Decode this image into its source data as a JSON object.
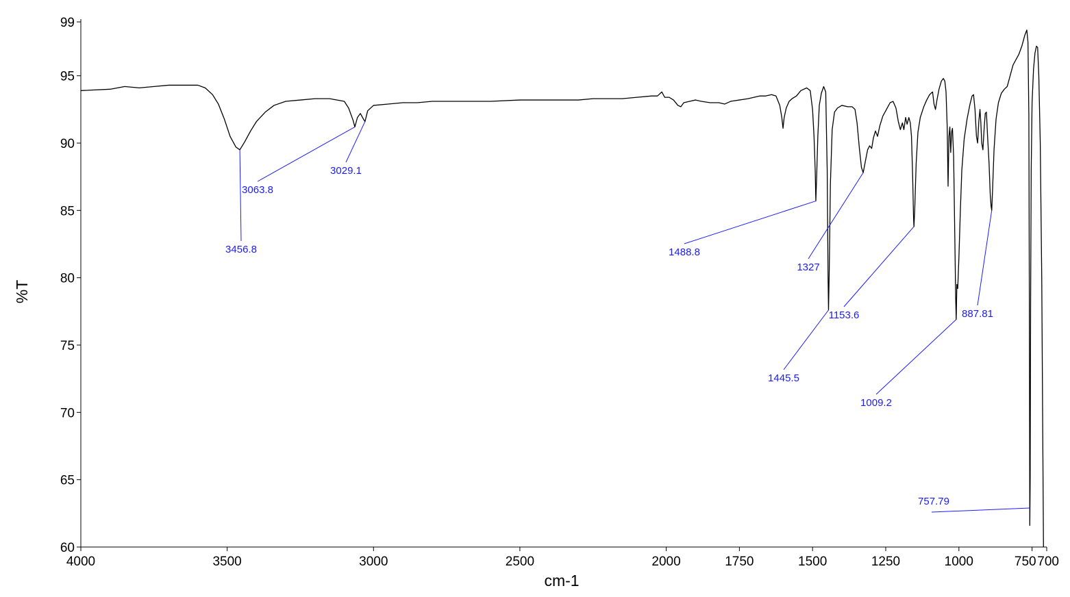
{
  "chart_data": {
    "type": "line",
    "title": "",
    "xlabel": "cm-1",
    "ylabel": "%T",
    "xlim": [
      4000,
      700
    ],
    "ylim": [
      60,
      99
    ],
    "x_reversed": true,
    "grid": false,
    "legend": "none",
    "x_ticks": [
      {
        "value": 4000,
        "label": "4000"
      },
      {
        "value": 3500,
        "label": "3500"
      },
      {
        "value": 3000,
        "label": "3000"
      },
      {
        "value": 2500,
        "label": "2500"
      },
      {
        "value": 2000,
        "label": "2000"
      },
      {
        "value": 1750,
        "label": "1750"
      },
      {
        "value": 1500,
        "label": "1500"
      },
      {
        "value": 1250,
        "label": "1250"
      },
      {
        "value": 1000,
        "label": "1000"
      },
      {
        "value": 750,
        "label": "750"
      },
      {
        "value": 700,
        "label": "700"
      }
    ],
    "y_ticks": [
      {
        "value": 60,
        "label": "60"
      },
      {
        "value": 65,
        "label": "65"
      },
      {
        "value": 70,
        "label": "70"
      },
      {
        "value": 75,
        "label": "75"
      },
      {
        "value": 80,
        "label": "80"
      },
      {
        "value": 85,
        "label": "85"
      },
      {
        "value": 90,
        "label": "90"
      },
      {
        "value": 95,
        "label": "95"
      },
      {
        "value": 99,
        "label": "99"
      }
    ],
    "line_color": "#000000",
    "annotation_color": "#1a1aff",
    "series": [
      {
        "points": [
          [
            4000,
            93.9
          ],
          [
            3900,
            94.0
          ],
          [
            3850,
            94.2
          ],
          [
            3800,
            94.1
          ],
          [
            3750,
            94.2
          ],
          [
            3700,
            94.3
          ],
          [
            3650,
            94.3
          ],
          [
            3600,
            94.3
          ],
          [
            3575,
            94.1
          ],
          [
            3550,
            93.6
          ],
          [
            3530,
            92.9
          ],
          [
            3510,
            91.8
          ],
          [
            3490,
            90.5
          ],
          [
            3470,
            89.7
          ],
          [
            3456.8,
            89.5
          ],
          [
            3440,
            90.1
          ],
          [
            3420,
            90.9
          ],
          [
            3400,
            91.6
          ],
          [
            3370,
            92.3
          ],
          [
            3340,
            92.8
          ],
          [
            3300,
            93.1
          ],
          [
            3250,
            93.2
          ],
          [
            3200,
            93.3
          ],
          [
            3150,
            93.3
          ],
          [
            3100,
            93.1
          ],
          [
            3085,
            92.6
          ],
          [
            3070,
            91.7
          ],
          [
            3063.8,
            91.2
          ],
          [
            3055,
            91.9
          ],
          [
            3045,
            92.2
          ],
          [
            3035,
            91.8
          ],
          [
            3029.1,
            91.6
          ],
          [
            3020,
            92.4
          ],
          [
            3000,
            92.8
          ],
          [
            2950,
            92.9
          ],
          [
            2900,
            93.0
          ],
          [
            2850,
            93.0
          ],
          [
            2800,
            93.1
          ],
          [
            2700,
            93.1
          ],
          [
            2600,
            93.1
          ],
          [
            2500,
            93.2
          ],
          [
            2400,
            93.2
          ],
          [
            2300,
            93.2
          ],
          [
            2250,
            93.3
          ],
          [
            2200,
            93.3
          ],
          [
            2150,
            93.3
          ],
          [
            2100,
            93.4
          ],
          [
            2050,
            93.5
          ],
          [
            2030,
            93.5
          ],
          [
            2015,
            93.8
          ],
          [
            2005,
            93.4
          ],
          [
            1990,
            93.4
          ],
          [
            1975,
            93.2
          ],
          [
            1960,
            92.8
          ],
          [
            1950,
            92.7
          ],
          [
            1940,
            93.0
          ],
          [
            1920,
            93.1
          ],
          [
            1900,
            93.2
          ],
          [
            1880,
            93.1
          ],
          [
            1850,
            93.0
          ],
          [
            1820,
            93.0
          ],
          [
            1800,
            92.9
          ],
          [
            1780,
            93.1
          ],
          [
            1750,
            93.2
          ],
          [
            1720,
            93.3
          ],
          [
            1700,
            93.4
          ],
          [
            1680,
            93.5
          ],
          [
            1660,
            93.5
          ],
          [
            1640,
            93.6
          ],
          [
            1625,
            93.5
          ],
          [
            1612,
            92.8
          ],
          [
            1605,
            91.9
          ],
          [
            1601,
            91.1
          ],
          [
            1597,
            91.9
          ],
          [
            1590,
            92.6
          ],
          [
            1580,
            93.1
          ],
          [
            1570,
            93.3
          ],
          [
            1555,
            93.5
          ],
          [
            1540,
            93.9
          ],
          [
            1520,
            94.1
          ],
          [
            1508,
            93.9
          ],
          [
            1500,
            92.5
          ],
          [
            1495,
            90.5
          ],
          [
            1491,
            88.0
          ],
          [
            1488.8,
            85.7
          ],
          [
            1486,
            87.5
          ],
          [
            1482,
            90.5
          ],
          [
            1477,
            92.8
          ],
          [
            1470,
            93.7
          ],
          [
            1462,
            94.2
          ],
          [
            1455,
            93.8
          ],
          [
            1450,
            88.0
          ],
          [
            1447,
            80.0
          ],
          [
            1445.5,
            77.6
          ],
          [
            1443,
            80.5
          ],
          [
            1439,
            87.0
          ],
          [
            1433,
            91.0
          ],
          [
            1425,
            92.3
          ],
          [
            1415,
            92.6
          ],
          [
            1400,
            92.8
          ],
          [
            1380,
            92.7
          ],
          [
            1365,
            92.7
          ],
          [
            1355,
            92.5
          ],
          [
            1348,
            91.5
          ],
          [
            1340,
            89.6
          ],
          [
            1333,
            88.2
          ],
          [
            1327,
            87.8
          ],
          [
            1320,
            88.6
          ],
          [
            1312,
            89.5
          ],
          [
            1305,
            89.8
          ],
          [
            1298,
            89.6
          ],
          [
            1292,
            90.4
          ],
          [
            1285,
            90.9
          ],
          [
            1278,
            90.5
          ],
          [
            1270,
            91.3
          ],
          [
            1260,
            92.0
          ],
          [
            1245,
            92.6
          ],
          [
            1235,
            93.0
          ],
          [
            1225,
            93.1
          ],
          [
            1215,
            92.6
          ],
          [
            1207,
            91.6
          ],
          [
            1200,
            91.0
          ],
          [
            1193,
            91.5
          ],
          [
            1188,
            91.0
          ],
          [
            1182,
            91.9
          ],
          [
            1177,
            91.4
          ],
          [
            1171,
            91.9
          ],
          [
            1166,
            91.5
          ],
          [
            1162,
            90.5
          ],
          [
            1158,
            87.5
          ],
          [
            1155,
            84.5
          ],
          [
            1153.6,
            83.8
          ],
          [
            1151,
            85.0
          ],
          [
            1146,
            88.5
          ],
          [
            1140,
            90.8
          ],
          [
            1132,
            91.9
          ],
          [
            1120,
            92.7
          ],
          [
            1110,
            93.2
          ],
          [
            1100,
            93.6
          ],
          [
            1090,
            93.8
          ],
          [
            1085,
            92.9
          ],
          [
            1080,
            92.5
          ],
          [
            1075,
            93.2
          ],
          [
            1068,
            94.0
          ],
          [
            1060,
            94.6
          ],
          [
            1053,
            94.8
          ],
          [
            1048,
            94.6
          ],
          [
            1044,
            93.8
          ],
          [
            1040,
            91.2
          ],
          [
            1037,
            86.8
          ],
          [
            1034,
            90.5
          ],
          [
            1031,
            91.2
          ],
          [
            1028,
            89.3
          ],
          [
            1025,
            90.8
          ],
          [
            1022,
            91.1
          ],
          [
            1018,
            89.0
          ],
          [
            1014,
            83.0
          ],
          [
            1011,
            78.5
          ],
          [
            1009.2,
            76.9
          ],
          [
            1007,
            79.5
          ],
          [
            1004,
            79.2
          ],
          [
            1000,
            81.5
          ],
          [
            995,
            85.0
          ],
          [
            990,
            88.0
          ],
          [
            982,
            90.3
          ],
          [
            972,
            91.8
          ],
          [
            962,
            92.9
          ],
          [
            955,
            93.5
          ],
          [
            950,
            93.6
          ],
          [
            945,
            92.5
          ],
          [
            940,
            90.5
          ],
          [
            936,
            90.0
          ],
          [
            932,
            91.6
          ],
          [
            928,
            92.5
          ],
          [
            925,
            91.5
          ],
          [
            922,
            90.0
          ],
          [
            918,
            89.5
          ],
          [
            914,
            91.0
          ],
          [
            910,
            92.2
          ],
          [
            906,
            92.3
          ],
          [
            902,
            90.5
          ],
          [
            897,
            88.5
          ],
          [
            893,
            86.2
          ],
          [
            890,
            85.3
          ],
          [
            887.81,
            85.0
          ],
          [
            885,
            86.5
          ],
          [
            880,
            89.5
          ],
          [
            873,
            91.8
          ],
          [
            865,
            93.0
          ],
          [
            855,
            93.7
          ],
          [
            845,
            94.0
          ],
          [
            835,
            94.2
          ],
          [
            825,
            95.0
          ],
          [
            815,
            95.8
          ],
          [
            805,
            96.2
          ],
          [
            795,
            96.6
          ],
          [
            785,
            97.2
          ],
          [
            775,
            98.0
          ],
          [
            768,
            98.4
          ],
          [
            764,
            97.5
          ],
          [
            761,
            92.0
          ],
          [
            759.5,
            80.0
          ],
          [
            758.5,
            70.0
          ],
          [
            757.79,
            61.6
          ],
          [
            756.5,
            65.0
          ],
          [
            755,
            78.0
          ],
          [
            753,
            88.0
          ],
          [
            750,
            93.0
          ],
          [
            745,
            95.5
          ],
          [
            740,
            96.7
          ],
          [
            735,
            97.2
          ],
          [
            731,
            97.1
          ],
          [
            727,
            95.0
          ],
          [
            722,
            90.0
          ],
          [
            717,
            80.0
          ],
          [
            711,
            60.0
          ]
        ]
      }
    ],
    "peak_labels": [
      {
        "x": 3456.8,
        "y": 89.5,
        "text": "3456.8"
      },
      {
        "x": 3063.8,
        "y": 91.2,
        "text": "3063.8"
      },
      {
        "x": 3029.1,
        "y": 91.6,
        "text": "3029.1"
      },
      {
        "x": 1488.8,
        "y": 85.7,
        "text": "1488.8"
      },
      {
        "x": 1445.5,
        "y": 77.6,
        "text": "1445.5"
      },
      {
        "x": 1327,
        "y": 87.8,
        "text": "1327"
      },
      {
        "x": 1153.6,
        "y": 83.8,
        "text": "1153.6"
      },
      {
        "x": 1009.2,
        "y": 76.9,
        "text": "1009.2"
      },
      {
        "x": 887.81,
        "y": 85.0,
        "text": "887.81"
      },
      {
        "x": 757.79,
        "y": 62.9,
        "text": "757.79"
      }
    ]
  }
}
